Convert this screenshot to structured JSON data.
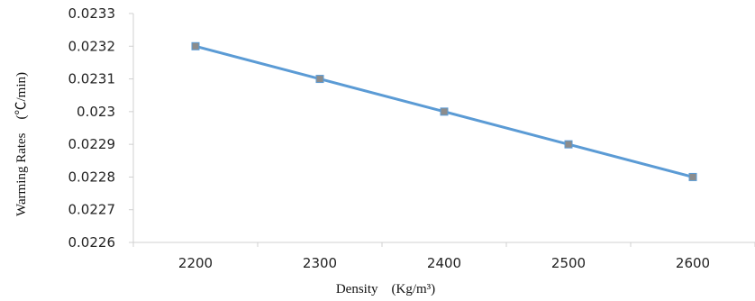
{
  "chart_data": {
    "type": "line",
    "xlabel": "Density　(Kg/m³)",
    "ylabel": "Warming Rates　(℃/min)",
    "categories": [
      "2200",
      "2300",
      "2400",
      "2500",
      "2600"
    ],
    "y_ticks": [
      "0.0226",
      "0.0227",
      "0.0228",
      "0.0229",
      "0.023",
      "0.0231",
      "0.0232",
      "0.0233"
    ],
    "ylim": [
      0.0226,
      0.0233
    ],
    "grid": false,
    "legend": "none",
    "series": [
      {
        "values": [
          0.0232,
          0.0231,
          0.023,
          0.0229,
          0.0228
        ],
        "color": "#5b9bd5",
        "marker_color": "#8c8c8c"
      }
    ]
  }
}
